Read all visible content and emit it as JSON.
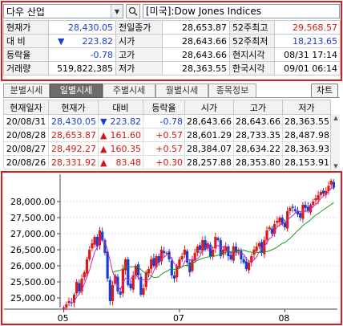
{
  "selector": {
    "index_name": "다우 산업",
    "market_label": "[미국]:Dow Jones Indices"
  },
  "quote": {
    "rows": [
      [
        {
          "label": "현재가"
        },
        {
          "value": "28,430.05",
          "color": "blue"
        },
        {
          "label": "전일종가"
        },
        {
          "value": "28,653.87",
          "color": "blk"
        },
        {
          "label": "52주최고"
        },
        {
          "value": "29,568.57",
          "color": "red"
        }
      ],
      [
        {
          "label": "대  비"
        },
        {
          "value": "223.82",
          "color": "blue",
          "arrow": "▼"
        },
        {
          "label": "시가"
        },
        {
          "value": "28,643.66",
          "color": "blk"
        },
        {
          "label": "52주최저"
        },
        {
          "value": "18,213.65",
          "color": "blue"
        }
      ],
      [
        {
          "label": "등락율"
        },
        {
          "value": "-0.78",
          "color": "blue"
        },
        {
          "label": "고가"
        },
        {
          "value": "28,643.66",
          "color": "blk"
        },
        {
          "label": "현지시각"
        },
        {
          "value": "08/31 17:14",
          "color": "blk"
        }
      ],
      [
        {
          "label": "거래량"
        },
        {
          "value": "519,822,385",
          "color": "blk"
        },
        {
          "label": "저가"
        },
        {
          "value": "28,363.55",
          "color": "blk"
        },
        {
          "label": "한국시각"
        },
        {
          "value": "09/01 06:14",
          "color": "blk"
        }
      ]
    ]
  },
  "tabs": [
    {
      "label": "분별시세",
      "active": false
    },
    {
      "label": "일별시세",
      "active": true
    },
    {
      "label": "주별시세",
      "active": false
    },
    {
      "label": "월별시세",
      "active": false
    },
    {
      "label": "종목정보",
      "active": false
    }
  ],
  "chart_button": "차트",
  "history": {
    "headers": [
      "현재일자",
      "현재가",
      "대비",
      "등락율",
      "시가",
      "고가",
      "저가"
    ],
    "rows": [
      {
        "date": "20/08/31",
        "price": "28,430.05",
        "arrow": "▼",
        "change": "223.82",
        "rate": "-0.78",
        "open": "28,643.66",
        "high": "28,643.66",
        "low": "28,363.55",
        "color": "blue"
      },
      {
        "date": "20/08/28",
        "price": "28,653.87",
        "arrow": "▲",
        "change": "161.60",
        "rate": "+0.57",
        "open": "28,601.29",
        "high": "28,733.35",
        "low": "28,487.98",
        "color": "red"
      },
      {
        "date": "20/08/27",
        "price": "28,492.27",
        "arrow": "▲",
        "change": "160.35",
        "rate": "+0.57",
        "open": "28,384.07",
        "high": "28,634.22",
        "low": "28,363.93",
        "color": "red"
      },
      {
        "date": "20/08/26",
        "price": "28,331.92",
        "arrow": "▲",
        "change": "83.48",
        "rate": "+0.30",
        "open": "28,257.88",
        "high": "28,353.80",
        "low": "28,153.91",
        "color": "red"
      }
    ]
  },
  "chart_data": {
    "type": "candlestick",
    "y_ticks": [
      "28,000.00",
      "27,500.00",
      "27,000.00",
      "26,500.00",
      "26,000.00",
      "25,500.00",
      "25,000.00"
    ],
    "y_tick_values": [
      28000,
      27500,
      27000,
      26500,
      26000,
      25500,
      25000
    ],
    "ylim": [
      24700,
      28750
    ],
    "x_labels": [
      "05",
      "07",
      "08"
    ],
    "x_label_positions": [
      0,
      45,
      86
    ],
    "colors": {
      "up": "#e01818",
      "down": "#1a3fd0",
      "ma_short": "#cc22cc",
      "ma_long": "#1a9a1a"
    },
    "closes": [
      24700,
      24800,
      24900,
      24850,
      25100,
      25500,
      25200,
      25600,
      25800,
      26200,
      26500,
      26700,
      26900,
      26600,
      27100,
      26800,
      26400,
      25600,
      24900,
      25400,
      25700,
      25200,
      25100,
      25900,
      26200,
      25400,
      25300,
      25700,
      26000,
      25700,
      25100,
      25300,
      25800,
      25900,
      26200,
      26000,
      26300,
      26100,
      26500,
      26400,
      26400,
      26200,
      25700,
      25600,
      26000,
      26200,
      26300,
      26500,
      26100,
      25800,
      26200,
      26400,
      26600,
      26500,
      26800,
      26500,
      26700,
      26300,
      26500,
      26900,
      26800,
      26300,
      26500,
      26600,
      26300,
      26200,
      26600,
      26400,
      26500,
      26200,
      26100,
      25900,
      26100,
      26300,
      26500,
      26600,
      26700,
      26400,
      26800,
      27100,
      27200,
      27000,
      27300,
      27400,
      27500,
      27300,
      27200,
      27700,
      27800,
      27800,
      27700,
      27600,
      27500,
      27900,
      27800,
      27700,
      27900,
      28000,
      28100,
      28200,
      28300,
      28250,
      28330,
      28490,
      28650,
      28430
    ]
  }
}
